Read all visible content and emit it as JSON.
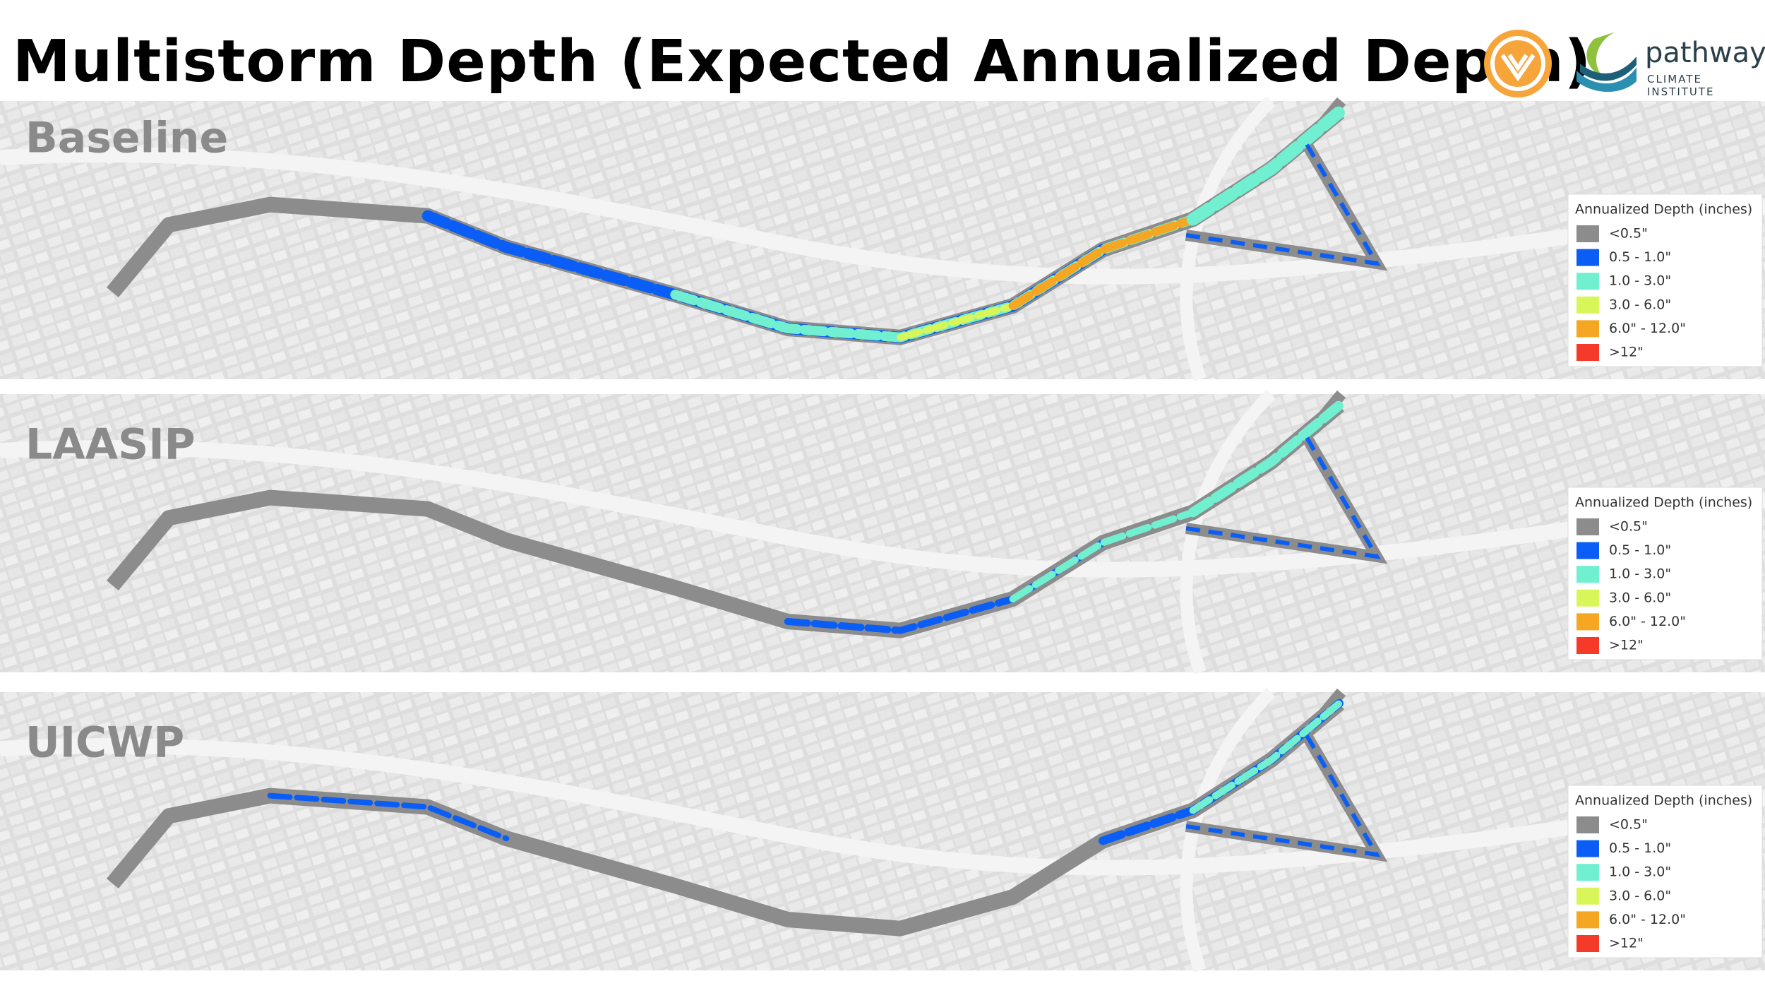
{
  "header": {
    "title": "Multistorm Depth (Expected Annualized Depth)",
    "logo_name": "pathways",
    "logo_subtitle": "CLIMATE INSTITUTE"
  },
  "legend": {
    "title": "Annualized Depth (inches)",
    "items": [
      {
        "label": "<0.5\"",
        "color": "#8c8c8c"
      },
      {
        "label": "0.5 - 1.0\"",
        "color": "#0a5ef5"
      },
      {
        "label": "1.0 - 3.0\"",
        "color": "#70f0d0"
      },
      {
        "label": "3.0 - 6.0\"",
        "color": "#d8f55a"
      },
      {
        "label": "6.0\" - 12.0\"",
        "color": "#f5a623"
      },
      {
        "label": ">12\"",
        "color": "#f53a2a"
      }
    ]
  },
  "panels": [
    {
      "label": "Baseline"
    },
    {
      "label": "LAASIP"
    },
    {
      "label": "UICWP"
    }
  ]
}
